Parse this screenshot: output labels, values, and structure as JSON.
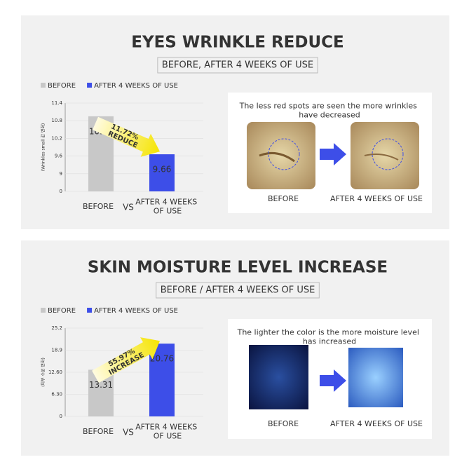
{
  "chart_data": [
    {
      "type": "bar",
      "title": "EYES WRINKLE REDUCE",
      "subtitle": "BEFORE, AFTER 4 WEEKS OF USE",
      "y_axis_label": "(Wrinkles small 값 변화)",
      "categories": [
        "BEFORE",
        "AFTER 4 WEEKS OF USE"
      ],
      "vs_label": "VS",
      "series": [
        {
          "name": "BEFORE",
          "color": "#c8c8c8",
          "values": [
            10.95,
            null
          ]
        },
        {
          "name": "AFTER 4 WEEKS OF USE",
          "color": "#3d4ee8",
          "values": [
            null,
            9.66
          ]
        }
      ],
      "ylim": [
        0,
        11.4
      ],
      "yticks": [
        0,
        9,
        9.6,
        10.2,
        10.8,
        11.4
      ],
      "grid": true,
      "annotation": "11.72% REDUCE"
    },
    {
      "type": "bar",
      "title": "SKIN MOISTURE LEVEL INCREASE",
      "subtitle": "BEFORE / AFTER 4 WEEKS OF USE",
      "y_axis_label": "(피부 수분 변화)",
      "categories": [
        "BEFORE",
        "AFTER 4 WEEKS OF USE"
      ],
      "vs_label": "VS",
      "series": [
        {
          "name": "BEFORE",
          "color": "#c8c8c8",
          "values": [
            13.31,
            null
          ]
        },
        {
          "name": "AFTER 4 WEEKS OF USE",
          "color": "#3d4ee8",
          "values": [
            null,
            20.76
          ]
        }
      ],
      "ylim": [
        0,
        25.2
      ],
      "yticks": [
        0,
        {
          "value": 6.3,
          "label": "6.30"
        },
        {
          "value": 12.6,
          "label": "12.60"
        },
        18.9,
        25.2
      ],
      "grid": true,
      "annotation": "55.97% INCREASE"
    }
  ],
  "image_panels": [
    {
      "caption": "The less red spots are seen the more wrinkles have decreased",
      "labels": [
        "BEFORE",
        "AFTER 4 WEEKS OF USE"
      ]
    },
    {
      "caption": "The lighter the color is the more moisture level has increased",
      "labels": [
        "BEFORE",
        "AFTER 4 WEEKS OF USE"
      ]
    }
  ]
}
